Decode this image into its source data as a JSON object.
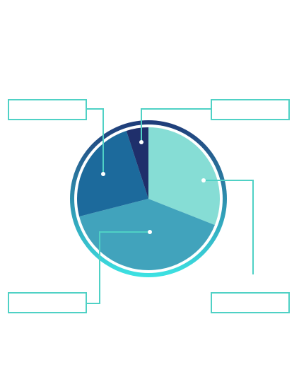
{
  "colors": {
    "ring_top": "#1f3a78",
    "ring_bottom": "#3de3e3",
    "connector": "#4fd1c5",
    "box_border": "#4fd1c5",
    "dot": "#ffffff"
  },
  "chart_data": {
    "type": "pie",
    "title": "",
    "start_angle_deg": 0,
    "direction": "clockwise",
    "slices": [
      {
        "value": 31,
        "color": "#86ddd5"
      },
      {
        "value": 40,
        "color": "#41a3bc"
      },
      {
        "value": 24,
        "color": "#1c6a9c"
      },
      {
        "value": 5,
        "color": "#1f2f6b"
      }
    ],
    "labels": [
      "",
      "",
      "",
      ""
    ]
  },
  "callouts": {
    "top_left": "",
    "top_right": "",
    "bottom_left": "",
    "bottom_right": ""
  }
}
